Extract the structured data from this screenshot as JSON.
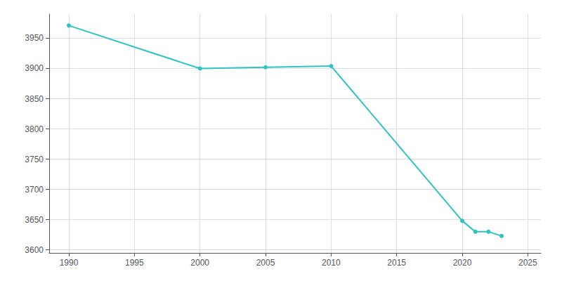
{
  "chart_data": {
    "type": "line",
    "x": [
      1990,
      2000,
      2005,
      2010,
      2020,
      2021,
      2022,
      2023
    ],
    "values": [
      3971,
      3900,
      3902,
      3904,
      3648,
      3630,
      3630,
      3623
    ],
    "color": "#2EC4C4",
    "marker": "circle",
    "xlim": [
      1988.5,
      2026
    ],
    "xticks": [
      1990,
      1995,
      2000,
      2005,
      2010,
      2015,
      2020,
      2025
    ],
    "ylim": [
      3595,
      3990
    ],
    "yticks": [
      3600,
      3650,
      3700,
      3750,
      3800,
      3850,
      3900,
      3950
    ],
    "grid": true
  }
}
